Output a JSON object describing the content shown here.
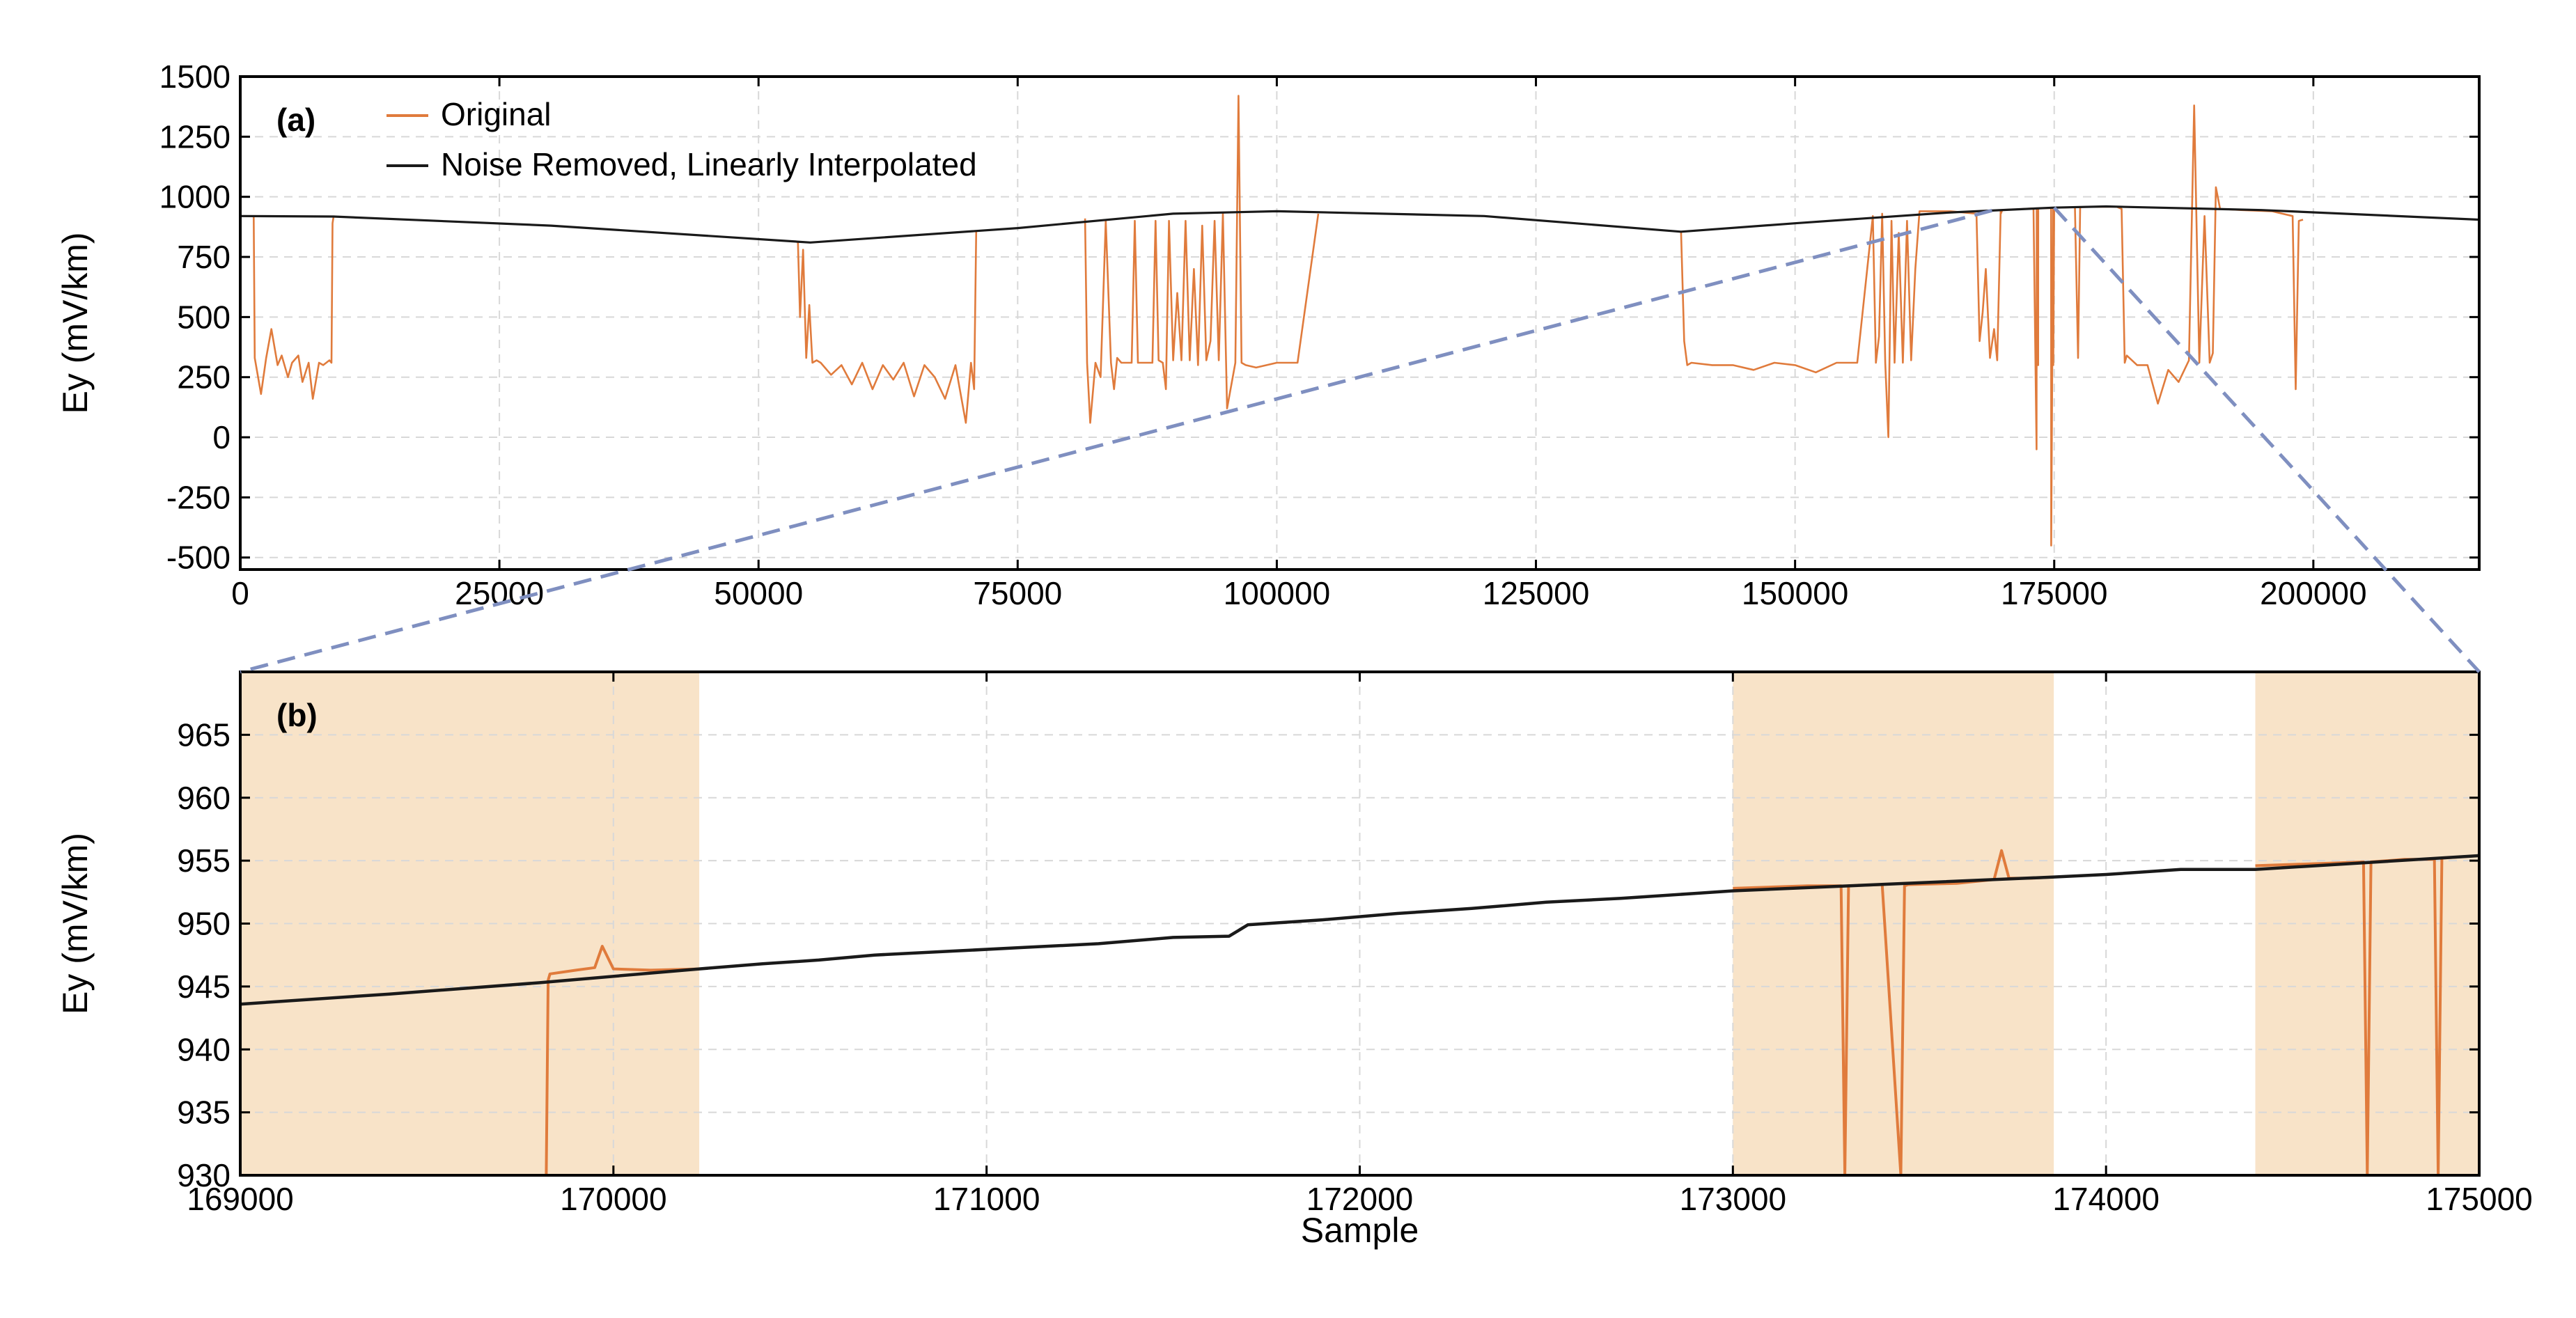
{
  "colors": {
    "original": "#e07b3c",
    "interpolated": "#1a1a1a",
    "shade": "#f8e3c8",
    "zoom_connector": "#7f8fc0"
  },
  "chart_data": [
    {
      "type": "line",
      "panel_label": "(a)",
      "xlabel": "",
      "ylabel": "Ey (mV/km)",
      "xlim": [
        0,
        216000
      ],
      "ylim": [
        -550,
        1500
      ],
      "xticks": [
        0,
        25000,
        50000,
        75000,
        100000,
        125000,
        150000,
        175000,
        200000
      ],
      "xtick_labels": [
        "0",
        "25000",
        "50000",
        "75000",
        "100000",
        "125000",
        "150000",
        "175000",
        "200000"
      ],
      "yticks": [
        -500,
        -250,
        0,
        250,
        500,
        750,
        1000,
        1250,
        1500
      ],
      "ytick_labels": [
        "-500",
        "-250",
        "0",
        "250",
        "500",
        "750",
        "1000",
        "1250",
        "1500"
      ],
      "grid": true,
      "legend": {
        "placement": "top-left",
        "entries": [
          "Original",
          "Noise Removed, Linearly Interpolated"
        ]
      },
      "series": [
        {
          "name": "Noise Removed, Linearly Interpolated",
          "x": [
            0,
            9000,
            30000,
            55000,
            75000,
            90000,
            100000,
            120000,
            139000,
            150000,
            165000,
            175000,
            180000,
            195000,
            216000
          ],
          "y": [
            920,
            918,
            880,
            810,
            870,
            930,
            940,
            920,
            855,
            890,
            935,
            955,
            960,
            945,
            905
          ]
        },
        {
          "name": "Original",
          "segments": [
            {
              "x": [
                1300,
                1400,
                2000,
                2500,
                3000,
                3600,
                4000,
                4600,
                5000,
                5600,
                6000,
                6600,
                7000,
                7600,
                8000,
                8600,
                8800,
                8900,
                9000
              ],
              "y": [
                920,
                330,
                180,
                330,
                450,
                300,
                340,
                250,
                310,
                340,
                230,
                310,
                160,
                310,
                300,
                320,
                310,
                890,
                918
              ]
            },
            {
              "x": [
                53800,
                54000,
                54300,
                54600,
                54900,
                55200,
                55600,
                56000,
                57000,
                58000,
                59000,
                60000,
                61000,
                62000,
                63000,
                64000,
                65000,
                66000,
                67000,
                68000,
                69000,
                70000,
                70500,
                70800,
                71000
              ],
              "y": [
                810,
                500,
                780,
                330,
                550,
                310,
                320,
                310,
                260,
                300,
                220,
                310,
                200,
                300,
                240,
                310,
                170,
                300,
                250,
                160,
                300,
                60,
                310,
                200,
                860
              ]
            },
            {
              "x": [
                81500,
                81700,
                82000,
                82500,
                83000,
                83500,
                84000,
                84300,
                84600,
                85000,
                86000,
                86300,
                86600,
                88000,
                88300,
                88600,
                89000,
                89300,
                89600,
                90000,
                90400,
                90800,
                91200,
                91600,
                92000,
                92400,
                92800,
                93200,
                93600,
                94000,
                94400,
                94800,
                95200,
                96000,
                96300,
                96600,
                97000,
                98000,
                100000,
                102000,
                104000
              ],
              "y": [
                910,
                310,
                60,
                310,
                250,
                900,
                310,
                200,
                330,
                310,
                310,
                900,
                310,
                310,
                900,
                320,
                310,
                200,
                900,
                320,
                600,
                320,
                900,
                320,
                700,
                300,
                880,
                320,
                400,
                900,
                320,
                930,
                120,
                310,
                1420,
                310,
                300,
                290,
                310,
                310,
                930
              ]
            },
            {
              "x": [
                139000,
                139300,
                139600,
                140000,
                142000,
                144000,
                146000,
                148000,
                150000,
                152000,
                154000,
                156000,
                157500,
                157800,
                158100,
                158400,
                158700,
                159000,
                159300,
                159600,
                160000,
                160400,
                160800,
                161200,
                161600,
                162000,
                165000,
                167500,
                167800,
                168100,
                168400,
                168800,
                169200,
                169500,
                169840,
                169850,
                170000,
                170230,
                171000,
                173000,
                173300,
                173310,
                173450,
                173460,
                174000,
                174500,
                174700,
                174710,
                174900,
                174910,
                175000,
                176000,
                177000,
                177300,
                177500,
                178000,
                181000,
                181500,
                181800,
                182000,
                183000,
                184000,
                185000,
                186000,
                187000,
                188000,
                188500,
                189000,
                189500,
                190000,
                190300,
                190600,
                191000,
                193000,
                196000,
                198000,
                198300,
                198600,
                199000
              ],
              "y": [
                855,
                400,
                300,
                310,
                300,
                300,
                280,
                310,
                300,
                270,
                310,
                310,
                920,
                310,
                420,
                930,
                310,
                0,
                900,
                310,
                850,
                310,
                900,
                320,
                700,
                940,
                940,
                930,
                400,
                520,
                700,
                330,
                450,
                320,
                945,
                930,
                946,
                946,
                947,
                952,
                -50,
                952,
                300,
                952,
                953,
                953,
                954,
                -450,
                954,
                300,
                955,
                956,
                957,
                330,
                957,
                958,
                959,
                950,
                310,
                340,
                300,
                300,
                140,
                280,
                230,
                320,
                1380,
                310,
                920,
                310,
                350,
                1040,
                950,
                945,
                940,
                920,
                200,
                900,
                905
              ]
            }
          ]
        }
      ],
      "zoom_region": {
        "x": [
          169000,
          175000
        ]
      }
    },
    {
      "type": "line",
      "panel_label": "(b)",
      "xlabel": "Sample",
      "ylabel": "Ey (mV/km)",
      "xlim": [
        169000,
        175000
      ],
      "ylim": [
        930,
        970
      ],
      "xticks": [
        169000,
        170000,
        171000,
        172000,
        173000,
        174000,
        175000
      ],
      "xtick_labels": [
        "169000",
        "170000",
        "171000",
        "172000",
        "173000",
        "174000",
        "175000"
      ],
      "yticks": [
        930,
        935,
        940,
        945,
        950,
        955,
        960,
        965
      ],
      "ytick_labels": [
        "930",
        "935",
        "940",
        "945",
        "950",
        "955",
        "960",
        "965"
      ],
      "grid": true,
      "shaded_ranges": [
        [
          169000,
          170230
        ],
        [
          173000,
          173860
        ],
        [
          174400,
          175000
        ]
      ],
      "series": [
        {
          "name": "Noise Removed, Linearly Interpolated",
          "x": [
            169000,
            169400,
            169800,
            170230,
            170400,
            170550,
            170700,
            170900,
            171100,
            171300,
            171500,
            171650,
            171700,
            171900,
            172100,
            172300,
            172500,
            172700,
            172900,
            173000,
            173860,
            174000,
            174200,
            174400,
            175000
          ],
          "y": [
            943.6,
            944.4,
            945.3,
            946.4,
            946.8,
            947.1,
            947.5,
            947.8,
            948.1,
            948.4,
            948.9,
            949.0,
            949.9,
            950.3,
            950.8,
            951.2,
            951.7,
            952.0,
            952.4,
            952.6,
            953.7,
            953.9,
            954.3,
            954.3,
            955.4
          ]
        },
        {
          "name": "Original",
          "segments": [
            {
              "x": [
                169820,
                169825,
                169830,
                169900,
                169950,
                169970,
                170000,
                170100,
                170230
              ],
              "y": [
                930,
                945.5,
                946.0,
                946.3,
                946.5,
                948.2,
                946.4,
                946.3,
                946.4
              ]
            },
            {
              "x": [
                173000,
                173200,
                173290,
                173300,
                173310,
                173400,
                173450,
                173460,
                173470,
                173600,
                173700,
                173720,
                173740,
                173800,
                173860
              ],
              "y": [
                952.8,
                953.0,
                953.0,
                930,
                953.0,
                953.1,
                930,
                953.0,
                953.1,
                953.2,
                953.5,
                955.8,
                953.6,
                953.6,
                953.7
              ]
            },
            {
              "x": [
                174400,
                174600,
                174690,
                174700,
                174710,
                174800,
                174880,
                174890,
                174900,
                175000
              ],
              "y": [
                954.6,
                954.8,
                954.9,
                930,
                954.9,
                955.1,
                955.1,
                930,
                955.2,
                955.4
              ]
            }
          ]
        }
      ]
    }
  ]
}
